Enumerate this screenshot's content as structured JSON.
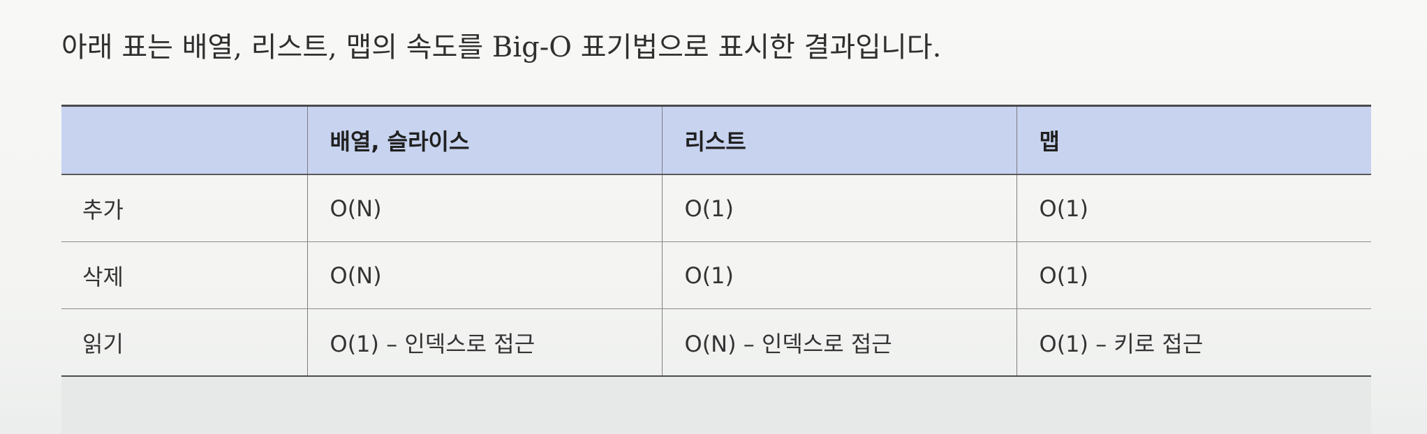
{
  "intro_text": "아래 표는 배열, 리스트, 맵의 속도를 Big-O 표기법으로 표시한 결과입니다.",
  "table": {
    "headers": [
      "",
      "배열, 슬라이스",
      "리스트",
      "맵"
    ],
    "rows": [
      {
        "label": "추가",
        "cells": [
          "O(N)",
          "O(1)",
          "O(1)"
        ]
      },
      {
        "label": "삭제",
        "cells": [
          "O(N)",
          "O(1)",
          "O(1)"
        ]
      },
      {
        "label": "읽기",
        "cells": [
          "O(1) – 인덱스로 접근",
          "O(N) – 인덱스로 접근",
          "O(1) – 키로 접근"
        ]
      }
    ]
  }
}
